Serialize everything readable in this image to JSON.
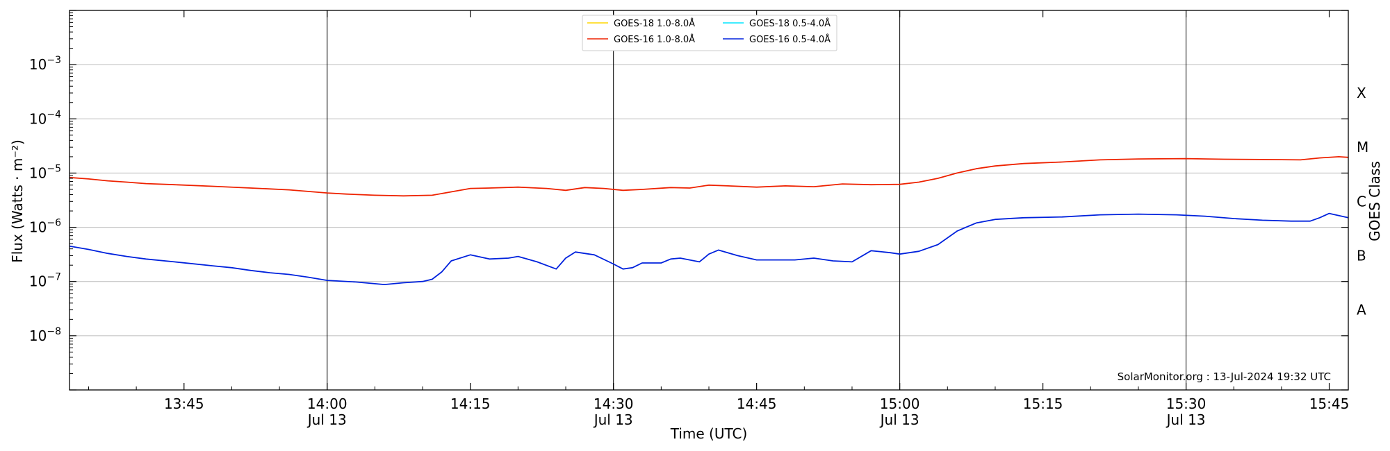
{
  "chart_data": {
    "type": "line",
    "title": "",
    "xlabel": "Time (UTC)",
    "ylabel": "Flux (Watts · m⁻²)",
    "y2label": "GOES Class",
    "yscale": "log",
    "ylim": [
      1e-09,
      0.01
    ],
    "xlim_minutes": [
      813,
      947
    ],
    "grid": "horizontal",
    "legend_placement": "top-center",
    "y_tick_labels": [
      {
        "exp": -8,
        "label": "10",
        "sup": "−8"
      },
      {
        "exp": -7,
        "label": "10",
        "sup": "−7"
      },
      {
        "exp": -6,
        "label": "10",
        "sup": "−6"
      },
      {
        "exp": -5,
        "label": "10",
        "sup": "−5"
      },
      {
        "exp": -4,
        "label": "10",
        "sup": "−4"
      },
      {
        "exp": -3,
        "label": "10",
        "sup": "−3"
      }
    ],
    "goes_classes": [
      {
        "label": "A",
        "level": 3e-08
      },
      {
        "label": "B",
        "level": 3e-07
      },
      {
        "label": "C",
        "level": 3e-06
      },
      {
        "label": "M",
        "level": 3e-05
      },
      {
        "label": "X",
        "level": 0.0003
      }
    ],
    "x_ticks": [
      {
        "t": 825,
        "label": "13:45",
        "date": ""
      },
      {
        "t": 840,
        "label": "14:00",
        "date": "Jul 13",
        "vline": true
      },
      {
        "t": 855,
        "label": "14:15",
        "date": ""
      },
      {
        "t": 870,
        "label": "14:30",
        "date": "Jul 13",
        "vline": true
      },
      {
        "t": 885,
        "label": "14:45",
        "date": ""
      },
      {
        "t": 900,
        "label": "15:00",
        "date": "Jul 13",
        "vline": true
      },
      {
        "t": 915,
        "label": "15:15",
        "date": ""
      },
      {
        "t": 930,
        "label": "15:30",
        "date": "Jul 13",
        "vline": true
      },
      {
        "t": 945,
        "label": "15:45",
        "date": ""
      }
    ],
    "series": [
      {
        "name": "GOES-18 1.0-8.0Å",
        "color": "#ffd700",
        "points": []
      },
      {
        "name": "GOES-18 0.5-4.0Å",
        "color": "#00e5ff",
        "points": []
      },
      {
        "name": "GOES-16 1.0-8.0Å",
        "color": "#ee2200",
        "points": [
          [
            813,
            8.3e-06
          ],
          [
            815,
            7.8e-06
          ],
          [
            817,
            7.2e-06
          ],
          [
            819,
            6.8e-06
          ],
          [
            821,
            6.4e-06
          ],
          [
            824,
            6.1e-06
          ],
          [
            828,
            5.7e-06
          ],
          [
            832,
            5.3e-06
          ],
          [
            836,
            4.9e-06
          ],
          [
            840,
            4.3e-06
          ],
          [
            842,
            4.1e-06
          ],
          [
            845,
            3.9e-06
          ],
          [
            848,
            3.8e-06
          ],
          [
            851,
            3.9e-06
          ],
          [
            853,
            4.5e-06
          ],
          [
            855,
            5.2e-06
          ],
          [
            857,
            5.3e-06
          ],
          [
            860,
            5.5e-06
          ],
          [
            863,
            5.2e-06
          ],
          [
            865,
            4.8e-06
          ],
          [
            867,
            5.4e-06
          ],
          [
            869,
            5.2e-06
          ],
          [
            871,
            4.8e-06
          ],
          [
            873,
            5e-06
          ],
          [
            876,
            5.4e-06
          ],
          [
            878,
            5.3e-06
          ],
          [
            880,
            6e-06
          ],
          [
            882,
            5.8e-06
          ],
          [
            885,
            5.5e-06
          ],
          [
            888,
            5.8e-06
          ],
          [
            891,
            5.6e-06
          ],
          [
            894,
            6.3e-06
          ],
          [
            897,
            6.1e-06
          ],
          [
            900,
            6.2e-06
          ],
          [
            902,
            6.8e-06
          ],
          [
            904,
            8e-06
          ],
          [
            906,
            1e-05
          ],
          [
            908,
            1.2e-05
          ],
          [
            910,
            1.35e-05
          ],
          [
            913,
            1.5e-05
          ],
          [
            917,
            1.6e-05
          ],
          [
            921,
            1.75e-05
          ],
          [
            925,
            1.82e-05
          ],
          [
            930,
            1.85e-05
          ],
          [
            934,
            1.8e-05
          ],
          [
            938,
            1.78e-05
          ],
          [
            942,
            1.75e-05
          ],
          [
            944,
            1.9e-05
          ],
          [
            946,
            2e-05
          ],
          [
            947,
            1.95e-05
          ]
        ]
      },
      {
        "name": "GOES-16 0.5-4.0Å",
        "color": "#0022dd",
        "points": [
          [
            813,
            4.5e-07
          ],
          [
            815,
            3.9e-07
          ],
          [
            817,
            3.3e-07
          ],
          [
            819,
            2.9e-07
          ],
          [
            821,
            2.6e-07
          ],
          [
            824,
            2.3e-07
          ],
          [
            828,
            1.95e-07
          ],
          [
            830,
            1.8e-07
          ],
          [
            832,
            1.6e-07
          ],
          [
            834,
            1.45e-07
          ],
          [
            836,
            1.35e-07
          ],
          [
            838,
            1.2e-07
          ],
          [
            840,
            1.05e-07
          ],
          [
            843,
            9.8e-08
          ],
          [
            846,
            8.8e-08
          ],
          [
            848,
            9.5e-08
          ],
          [
            850,
            1e-07
          ],
          [
            851,
            1.1e-07
          ],
          [
            852,
            1.5e-07
          ],
          [
            853,
            2.4e-07
          ],
          [
            855,
            3.1e-07
          ],
          [
            857,
            2.6e-07
          ],
          [
            859,
            2.7e-07
          ],
          [
            860,
            2.9e-07
          ],
          [
            862,
            2.3e-07
          ],
          [
            864,
            1.7e-07
          ],
          [
            865,
            2.7e-07
          ],
          [
            866,
            3.5e-07
          ],
          [
            868,
            3.1e-07
          ],
          [
            870,
            2.1e-07
          ],
          [
            871,
            1.7e-07
          ],
          [
            872,
            1.8e-07
          ],
          [
            873,
            2.2e-07
          ],
          [
            875,
            2.2e-07
          ],
          [
            876,
            2.6e-07
          ],
          [
            877,
            2.7e-07
          ],
          [
            879,
            2.3e-07
          ],
          [
            880,
            3.2e-07
          ],
          [
            881,
            3.8e-07
          ],
          [
            883,
            3e-07
          ],
          [
            885,
            2.5e-07
          ],
          [
            887,
            2.5e-07
          ],
          [
            889,
            2.5e-07
          ],
          [
            891,
            2.7e-07
          ],
          [
            893,
            2.4e-07
          ],
          [
            895,
            2.3e-07
          ],
          [
            897,
            3.7e-07
          ],
          [
            899,
            3.4e-07
          ],
          [
            900,
            3.2e-07
          ],
          [
            902,
            3.6e-07
          ],
          [
            904,
            4.8e-07
          ],
          [
            906,
            8.5e-07
          ],
          [
            908,
            1.2e-06
          ],
          [
            910,
            1.4e-06
          ],
          [
            913,
            1.5e-06
          ],
          [
            917,
            1.55e-06
          ],
          [
            921,
            1.7e-06
          ],
          [
            925,
            1.75e-06
          ],
          [
            929,
            1.7e-06
          ],
          [
            932,
            1.6e-06
          ],
          [
            935,
            1.45e-06
          ],
          [
            938,
            1.35e-06
          ],
          [
            941,
            1.3e-06
          ],
          [
            943,
            1.3e-06
          ],
          [
            944,
            1.5e-06
          ],
          [
            945,
            1.8e-06
          ],
          [
            947,
            1.5e-06
          ]
        ]
      }
    ],
    "footer": "SolarMonitor.org : 13-Jul-2024 19:32 UTC"
  }
}
